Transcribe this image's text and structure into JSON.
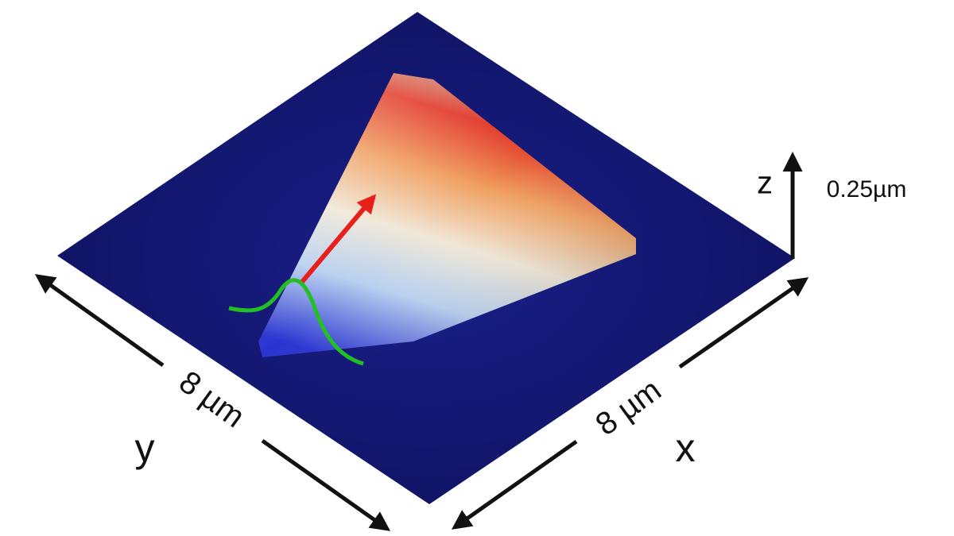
{
  "axes": {
    "z": {
      "label": "z",
      "scale": "0.25µm"
    },
    "y": {
      "label": "y",
      "length": "8 µm"
    },
    "x": {
      "label": "x",
      "length": "8 µm"
    }
  }
}
